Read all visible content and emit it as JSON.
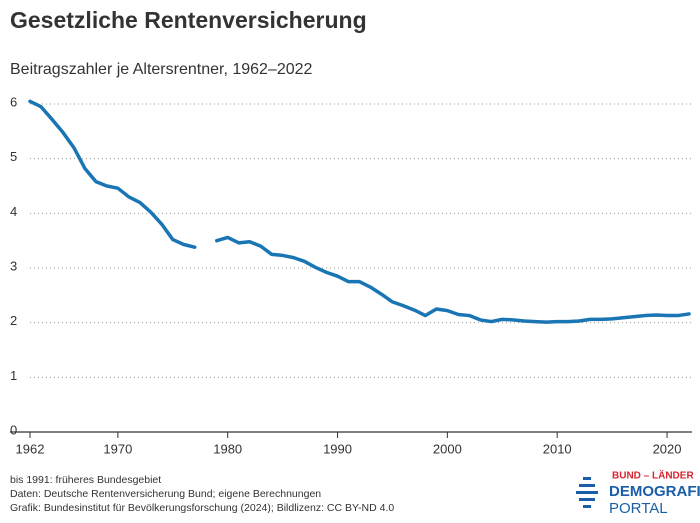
{
  "chart_data": {
    "type": "line",
    "title": "Gesetzliche Rentenversicherung",
    "subtitle": "Beitragszahler je Altersrentner, 1962–2022",
    "x": [
      1962,
      1963,
      1964,
      1965,
      1966,
      1967,
      1968,
      1969,
      1970,
      1971,
      1972,
      1973,
      1974,
      1975,
      1976,
      1977,
      1978,
      1979,
      1980,
      1981,
      1982,
      1983,
      1984,
      1985,
      1986,
      1987,
      1988,
      1989,
      1990,
      1991,
      1992,
      1993,
      1994,
      1995,
      1996,
      1997,
      1998,
      1999,
      2000,
      2001,
      2002,
      2003,
      2004,
      2005,
      2006,
      2007,
      2008,
      2009,
      2010,
      2011,
      2012,
      2013,
      2014,
      2015,
      2016,
      2017,
      2018,
      2019,
      2020,
      2021,
      2022
    ],
    "series": [
      {
        "color": "#1a75b4",
        "values": [
          6.05,
          5.95,
          5.72,
          5.48,
          5.2,
          4.82,
          4.58,
          4.5,
          4.46,
          4.3,
          4.2,
          4.02,
          3.8,
          3.52,
          3.43,
          3.38,
          null,
          3.5,
          3.56,
          3.46,
          3.48,
          3.4,
          3.25,
          3.23,
          3.19,
          3.12,
          3.01,
          2.92,
          2.85,
          2.75,
          2.75,
          2.65,
          2.52,
          2.38,
          2.31,
          2.23,
          2.13,
          2.25,
          2.22,
          2.15,
          2.13,
          2.05,
          2.02,
          2.06,
          2.05,
          2.03,
          2.02,
          2.01,
          2.02,
          2.02,
          2.03,
          2.06,
          2.06,
          2.07,
          2.09,
          2.11,
          2.13,
          2.14,
          2.13,
          2.13,
          2.16
        ]
      }
    ],
    "xlim": [
      1962,
      2022
    ],
    "xticks": [
      1962,
      1970,
      1980,
      1990,
      2000,
      2010,
      2020
    ],
    "ylim": [
      0,
      6
    ],
    "yticks": [
      0,
      1,
      2,
      3,
      4,
      5,
      6
    ],
    "grid": true,
    "notes": [
      "bis 1991: früheres Bundesgebiet",
      "Daten: Deutsche Rentenversicherung Bund; eigene Berechnungen",
      "Grafik: Bundesinstitut für Bevölkerungsforschung (2024); Bildlizenz: CC BY-ND 4.0"
    ]
  },
  "logo": {
    "top": "BUND – LÄNDER",
    "middle": "DEMOGRAFIE",
    "bottom": "PORTAL"
  }
}
